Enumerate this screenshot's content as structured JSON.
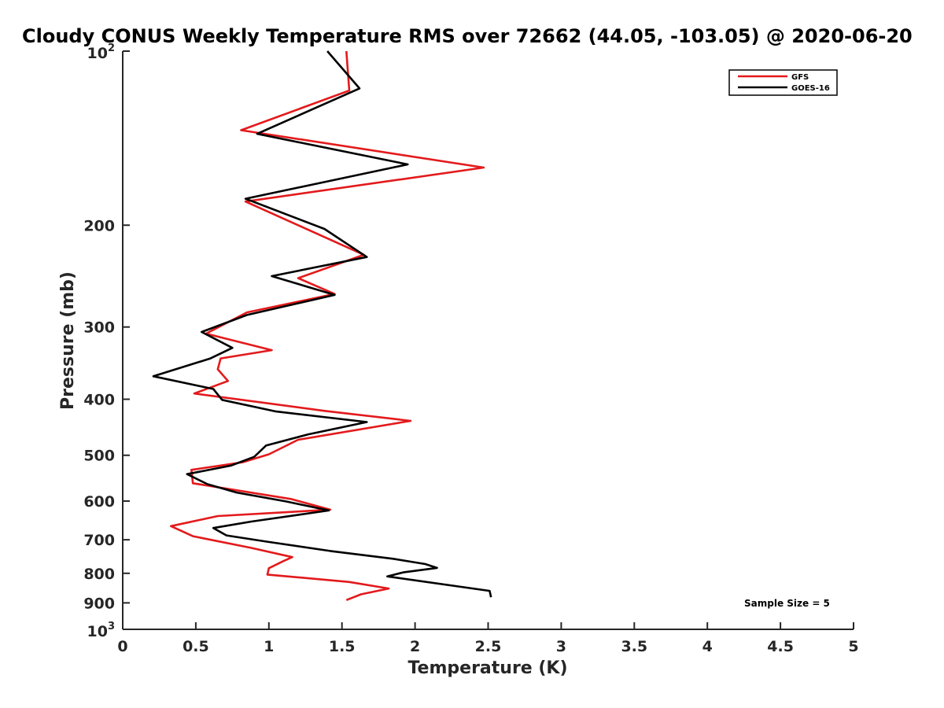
{
  "chart_data": {
    "type": "line",
    "title": "Cloudy CONUS Weekly Temperature RMS over 72662 (44.05, -103.05) @ 2020-06-20",
    "xlabel": "Temperature (K)",
    "ylabel": "Pressure (mb)",
    "xlim": [
      0,
      5
    ],
    "ylim": [
      100,
      1000
    ],
    "y_scale": "log",
    "y_reversed": true,
    "x_ticks": [
      "0",
      "0.5",
      "1",
      "1.5",
      "2",
      "2.5",
      "3",
      "3.5",
      "4",
      "4.5",
      "5"
    ],
    "y_ticks": [
      {
        "value": 100,
        "label": "10",
        "sup": "2"
      },
      {
        "value": 200,
        "label": "200"
      },
      {
        "value": 300,
        "label": "300"
      },
      {
        "value": 400,
        "label": "400"
      },
      {
        "value": 500,
        "label": "500"
      },
      {
        "value": 600,
        "label": "600"
      },
      {
        "value": 700,
        "label": "700"
      },
      {
        "value": 800,
        "label": "800"
      },
      {
        "value": 900,
        "label": "900"
      },
      {
        "value": 1000,
        "label": "10",
        "sup": "3"
      }
    ],
    "legend_position": "top-right",
    "annotation": "Sample Size = 5",
    "series": [
      {
        "name": "GFS",
        "color": "#e31a1c",
        "points": [
          [
            1.53,
            100
          ],
          [
            1.55,
            117
          ],
          [
            0.81,
            137
          ],
          [
            2.47,
            159
          ],
          [
            0.84,
            182
          ],
          [
            1.2,
            200
          ],
          [
            1.65,
            225
          ],
          [
            1.2,
            247
          ],
          [
            1.45,
            263
          ],
          [
            0.85,
            283
          ],
          [
            0.57,
            308
          ],
          [
            1.02,
            329
          ],
          [
            0.67,
            340
          ],
          [
            0.65,
            355
          ],
          [
            0.72,
            372
          ],
          [
            0.49,
            391
          ],
          [
            1.38,
            419
          ],
          [
            1.97,
            436
          ],
          [
            1.2,
            470
          ],
          [
            1.0,
            498
          ],
          [
            0.82,
            514
          ],
          [
            0.47,
            530
          ],
          [
            0.48,
            559
          ],
          [
            1.15,
            595
          ],
          [
            1.42,
            621
          ],
          [
            0.65,
            637
          ],
          [
            0.33,
            663
          ],
          [
            0.48,
            690
          ],
          [
            0.88,
            723
          ],
          [
            1.16,
            750
          ],
          [
            1.1,
            762
          ],
          [
            1.0,
            784
          ],
          [
            0.99,
            804
          ],
          [
            1.55,
            828
          ],
          [
            1.82,
            850
          ],
          [
            1.63,
            870
          ],
          [
            1.53,
            890
          ]
        ]
      },
      {
        "name": "GOES-16",
        "color": "#000000",
        "points": [
          [
            1.4,
            100
          ],
          [
            1.62,
            116
          ],
          [
            0.92,
            139
          ],
          [
            1.95,
            157
          ],
          [
            0.84,
            180
          ],
          [
            1.38,
            203
          ],
          [
            1.67,
            227
          ],
          [
            1.02,
            245
          ],
          [
            1.45,
            264
          ],
          [
            0.85,
            286
          ],
          [
            0.54,
            306
          ],
          [
            0.75,
            326
          ],
          [
            0.6,
            340
          ],
          [
            0.21,
            365
          ],
          [
            0.62,
            384
          ],
          [
            0.68,
            401
          ],
          [
            1.05,
            420
          ],
          [
            1.67,
            438
          ],
          [
            1.27,
            460
          ],
          [
            0.98,
            481
          ],
          [
            0.9,
            503
          ],
          [
            0.74,
            521
          ],
          [
            0.44,
            539
          ],
          [
            0.58,
            561
          ],
          [
            0.78,
            580
          ],
          [
            1.12,
            601
          ],
          [
            1.41,
            623
          ],
          [
            0.88,
            651
          ],
          [
            0.62,
            668
          ],
          [
            0.71,
            688
          ],
          [
            0.98,
            705
          ],
          [
            1.42,
            732
          ],
          [
            1.85,
            755
          ],
          [
            2.07,
            771
          ],
          [
            2.15,
            783
          ],
          [
            1.92,
            797
          ],
          [
            1.81,
            810
          ],
          [
            2.51,
            858
          ],
          [
            2.52,
            880
          ]
        ]
      }
    ]
  }
}
